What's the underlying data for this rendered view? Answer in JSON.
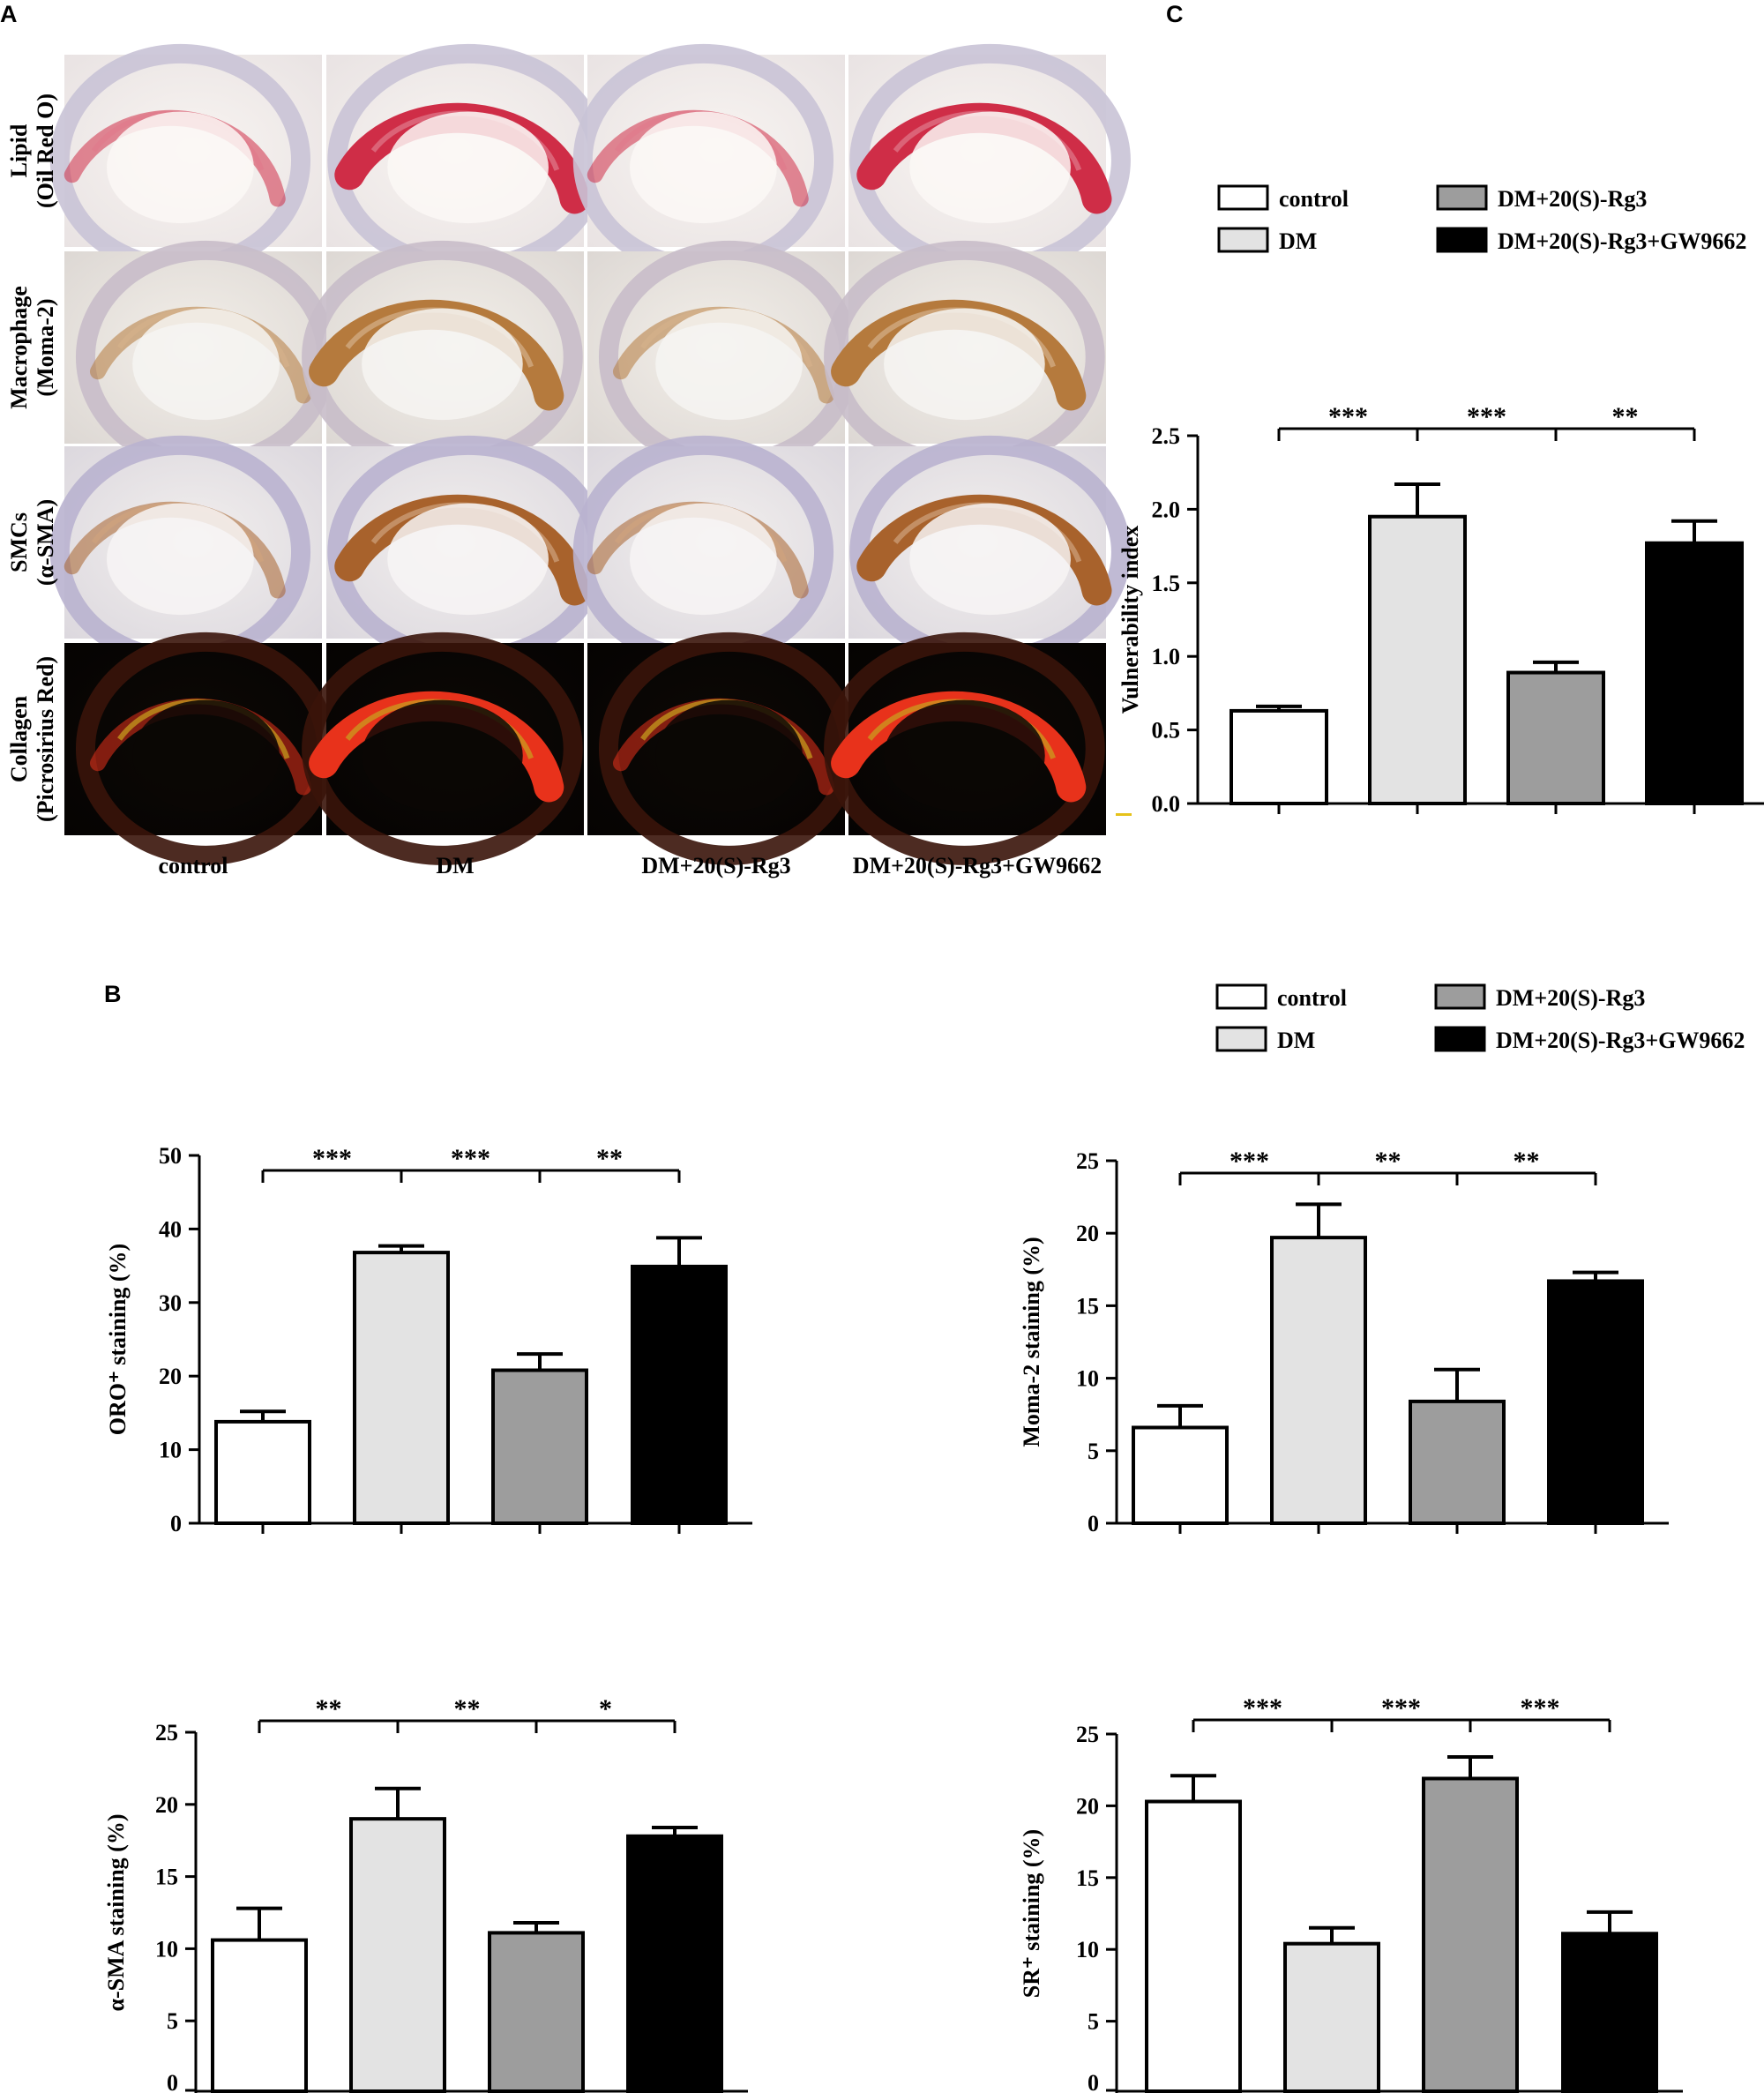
{
  "panels": {
    "a": {
      "letter": "A"
    },
    "b": {
      "letter": "B"
    },
    "c": {
      "letter": "C"
    }
  },
  "groups": [
    "control",
    "DM",
    "DM+20(S)-Rg3",
    "DM+20(S)-Rg3+GW9662"
  ],
  "group_colors": [
    "#ffffff",
    "#e3e3e3",
    "#9d9d9d",
    "#000000"
  ],
  "micrographs": {
    "rows": [
      {
        "line1": "Lipid",
        "line2": "(Oil Red O)",
        "stain": "lipid"
      },
      {
        "line1": "Macrophage",
        "line2": "(Moma-2)",
        "stain": "macrophage"
      },
      {
        "line1": "SMCs",
        "line2": "(α-SMA)",
        "stain": "smc"
      },
      {
        "line1": "Collagen",
        "line2": "(Picrosirius Red)",
        "stain": "collagen"
      }
    ],
    "columns": [
      "control",
      "DM",
      "DM+20(S)-Rg3",
      "DM+20(S)-Rg3+GW9662"
    ]
  },
  "chart_data": [
    {
      "id": "vulnerability",
      "panel": "C",
      "type": "bar",
      "categories": [
        "control",
        "DM",
        "DM+20(S)-Rg3",
        "DM+20(S)-Rg3+GW9662"
      ],
      "values": [
        0.63,
        1.95,
        0.89,
        1.77
      ],
      "errors": [
        0.03,
        0.22,
        0.07,
        0.15
      ],
      "ylabel": "Vulnerability index",
      "ylim": [
        0,
        2.5
      ],
      "yticks": [
        "0.0",
        "0.5",
        "1.0",
        "1.5",
        "2.0",
        "2.5"
      ],
      "significance": [
        "***",
        "***",
        "**"
      ]
    },
    {
      "id": "oro",
      "panel": "B",
      "type": "bar",
      "categories": [
        "control",
        "DM",
        "DM+20(S)-Rg3",
        "DM+20(S)-Rg3+GW9662"
      ],
      "values": [
        13.8,
        36.8,
        20.8,
        34.9
      ],
      "errors": [
        1.4,
        0.9,
        2.2,
        3.9
      ],
      "ylabel": "ORO⁺ staining (%)",
      "ylim": [
        0,
        50
      ],
      "yticks": [
        "0",
        "10",
        "20",
        "30",
        "40",
        "50"
      ],
      "significance": [
        "***",
        "***",
        "**"
      ]
    },
    {
      "id": "moma",
      "panel": "B",
      "type": "bar",
      "categories": [
        "control",
        "DM",
        "DM+20(S)-Rg3",
        "DM+20(S)-Rg3+GW9662"
      ],
      "values": [
        6.6,
        19.7,
        8.4,
        16.7
      ],
      "errors": [
        1.5,
        2.3,
        2.2,
        0.6
      ],
      "ylabel": "Moma-2 staining (%)",
      "ylim": [
        0,
        25
      ],
      "yticks": [
        "0",
        "5",
        "10",
        "15",
        "20",
        "25"
      ],
      "significance": [
        "***",
        "**",
        "**"
      ]
    },
    {
      "id": "sma",
      "panel": "B",
      "type": "bar",
      "categories": [
        "control",
        "DM",
        "DM+20(S)-Rg3",
        "DM+20(S)-Rg3+GW9662"
      ],
      "values": [
        10.6,
        19.0,
        11.1,
        17.8
      ],
      "errors": [
        2.2,
        2.1,
        0.7,
        0.6
      ],
      "ylabel": "α-SMA staining (%)",
      "ylim": [
        0,
        25
      ],
      "yticks": [
        "0",
        "5",
        "10",
        "15",
        "20",
        "25"
      ],
      "significance": [
        "**",
        "**",
        "*"
      ]
    },
    {
      "id": "sr",
      "panel": "B",
      "type": "bar",
      "categories": [
        "control",
        "DM",
        "DM+20(S)-Rg3",
        "DM+20(S)-Rg3+GW9662"
      ],
      "values": [
        20.3,
        10.4,
        21.9,
        11.1
      ],
      "errors": [
        1.8,
        1.1,
        1.5,
        1.5
      ],
      "ylabel": "SR⁺ staining (%)",
      "ylim": [
        0,
        25
      ],
      "yticks": [
        "0",
        "5",
        "10",
        "15",
        "20",
        "25"
      ],
      "significance": [
        "***",
        "***",
        "***"
      ]
    }
  ]
}
